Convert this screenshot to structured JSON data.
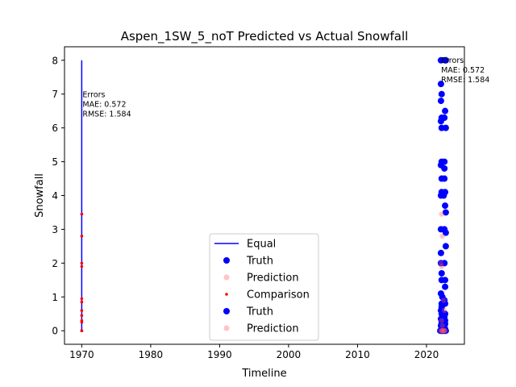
{
  "chart_data": {
    "type": "scatter",
    "title": "Aspen_1SW_5_noT Predicted vs Actual Snowfall",
    "xlabel": "Timeline",
    "ylabel": "Snowfall",
    "xlim": [
      1967.5,
      2025.5
    ],
    "ylim": [
      -0.4,
      8.4
    ],
    "xticks": [
      1970,
      1980,
      1990,
      2000,
      2010,
      2020
    ],
    "yticks": [
      0,
      1,
      2,
      3,
      4,
      5,
      6,
      7,
      8
    ],
    "grid": false,
    "legend_position": "lower center",
    "colors": {
      "equal": "#0000ff",
      "truth": "#0000ff",
      "prediction": "#ffaaaa",
      "comparison": "#ff0000"
    },
    "legend": [
      {
        "label": "Equal",
        "kind": "line",
        "color": "#0000ff"
      },
      {
        "label": "Truth",
        "kind": "dot",
        "color": "#0000ff"
      },
      {
        "label": "Prediction",
        "kind": "dot-light",
        "color": "#ffaaaa"
      },
      {
        "label": "Comparison",
        "kind": "dot-small",
        "color": "#ff0000"
      },
      {
        "label": "Truth",
        "kind": "dot",
        "color": "#0000ff"
      },
      {
        "label": "Prediction",
        "kind": "dot-light",
        "color": "#ffaaaa"
      }
    ],
    "annotations": [
      {
        "x": 1970,
        "y": 6.98,
        "lines": [
          "Errors",
          "MAE: 0.572",
          "RMSE: 1.584"
        ]
      },
      {
        "x": 2022,
        "y": 8.0,
        "lines": [
          "Errors",
          "MAE: 0.572",
          "RMSE: 1.584"
        ]
      }
    ],
    "series": [
      {
        "name": "Equal",
        "kind": "line",
        "points": [
          [
            1970,
            0
          ],
          [
            1970,
            8.0
          ]
        ]
      },
      {
        "name": "Truth",
        "kind": "scatter",
        "x": [
          2022.0,
          2022.1,
          2022.2,
          2022.3,
          2022.4,
          2022.5,
          2022.6,
          2022.7,
          2022.8,
          2022.1,
          2022.1,
          2022.2,
          2022.1,
          2022.2,
          2022.1,
          2022.2,
          2022.6,
          2022.1,
          2022.6,
          2022.6,
          2022.2,
          2022.1,
          2022.2,
          2022.5,
          2022.7,
          2022.7,
          2022.6,
          2022.2,
          2022.8,
          2022.7,
          2022.8,
          2022.1,
          2022.6,
          2022.8,
          2022.1,
          2022.7,
          2022.1,
          2022.6,
          2022.2,
          2022.8,
          2022.2,
          2022.7,
          2022.7,
          2022.1,
          2022.3,
          2022.6,
          2022.2,
          2022.7,
          2022.2,
          2022.1,
          2022.7,
          2022.2,
          2022.6,
          2022.1,
          2022.7,
          2022.2,
          2022.7,
          2022.1,
          2022.6,
          2022.2,
          2022.3,
          2022.5,
          2022.6,
          2022.7,
          2022.8
        ],
        "y": [
          0,
          0,
          0,
          0,
          0,
          0,
          0,
          0,
          0,
          8.0,
          7.3,
          7.0,
          6.8,
          6.3,
          6.2,
          5.0,
          5.0,
          4.9,
          4.8,
          4.5,
          4.5,
          4.0,
          4.1,
          4.0,
          4.1,
          6.5,
          6.3,
          6.0,
          6.0,
          8.0,
          8.0,
          3.0,
          3.0,
          2.9,
          2.3,
          3.7,
          2.0,
          2.0,
          1.7,
          2.5,
          1.5,
          1.5,
          1.3,
          1.1,
          1.0,
          0.9,
          0.8,
          0.8,
          0.7,
          0.6,
          0.5,
          0.5,
          0.4,
          0.35,
          0.3,
          0.25,
          0.2,
          0.15,
          0.1,
          0.1,
          0.05,
          0.05,
          0.05,
          0.05,
          3.5
        ]
      },
      {
        "name": "Prediction",
        "kind": "scatter-light",
        "x": [
          2022.1,
          2022.2,
          2022.3,
          2022.4,
          2022.5,
          2022.6,
          2022.7,
          2022.2,
          2022.3,
          2022.1,
          2022.2,
          2022.5,
          2022.6,
          2022.2,
          2022.3
        ],
        "y": [
          0,
          0,
          0,
          0,
          0,
          0,
          0,
          3.45,
          2.8,
          2.0,
          1.9,
          0.9,
          0.6,
          0.3,
          0.15
        ]
      },
      {
        "name": "Comparison",
        "kind": "scatter-small",
        "x": [
          1970,
          1970,
          1970,
          1970,
          1970,
          1970,
          1970,
          1970,
          1970,
          1970,
          1970,
          1970
        ],
        "y": [
          3.45,
          2.8,
          2.0,
          1.9,
          0.95,
          0.85,
          0.6,
          0.45,
          0.3,
          0.25,
          0.0,
          0.0
        ]
      }
    ]
  }
}
